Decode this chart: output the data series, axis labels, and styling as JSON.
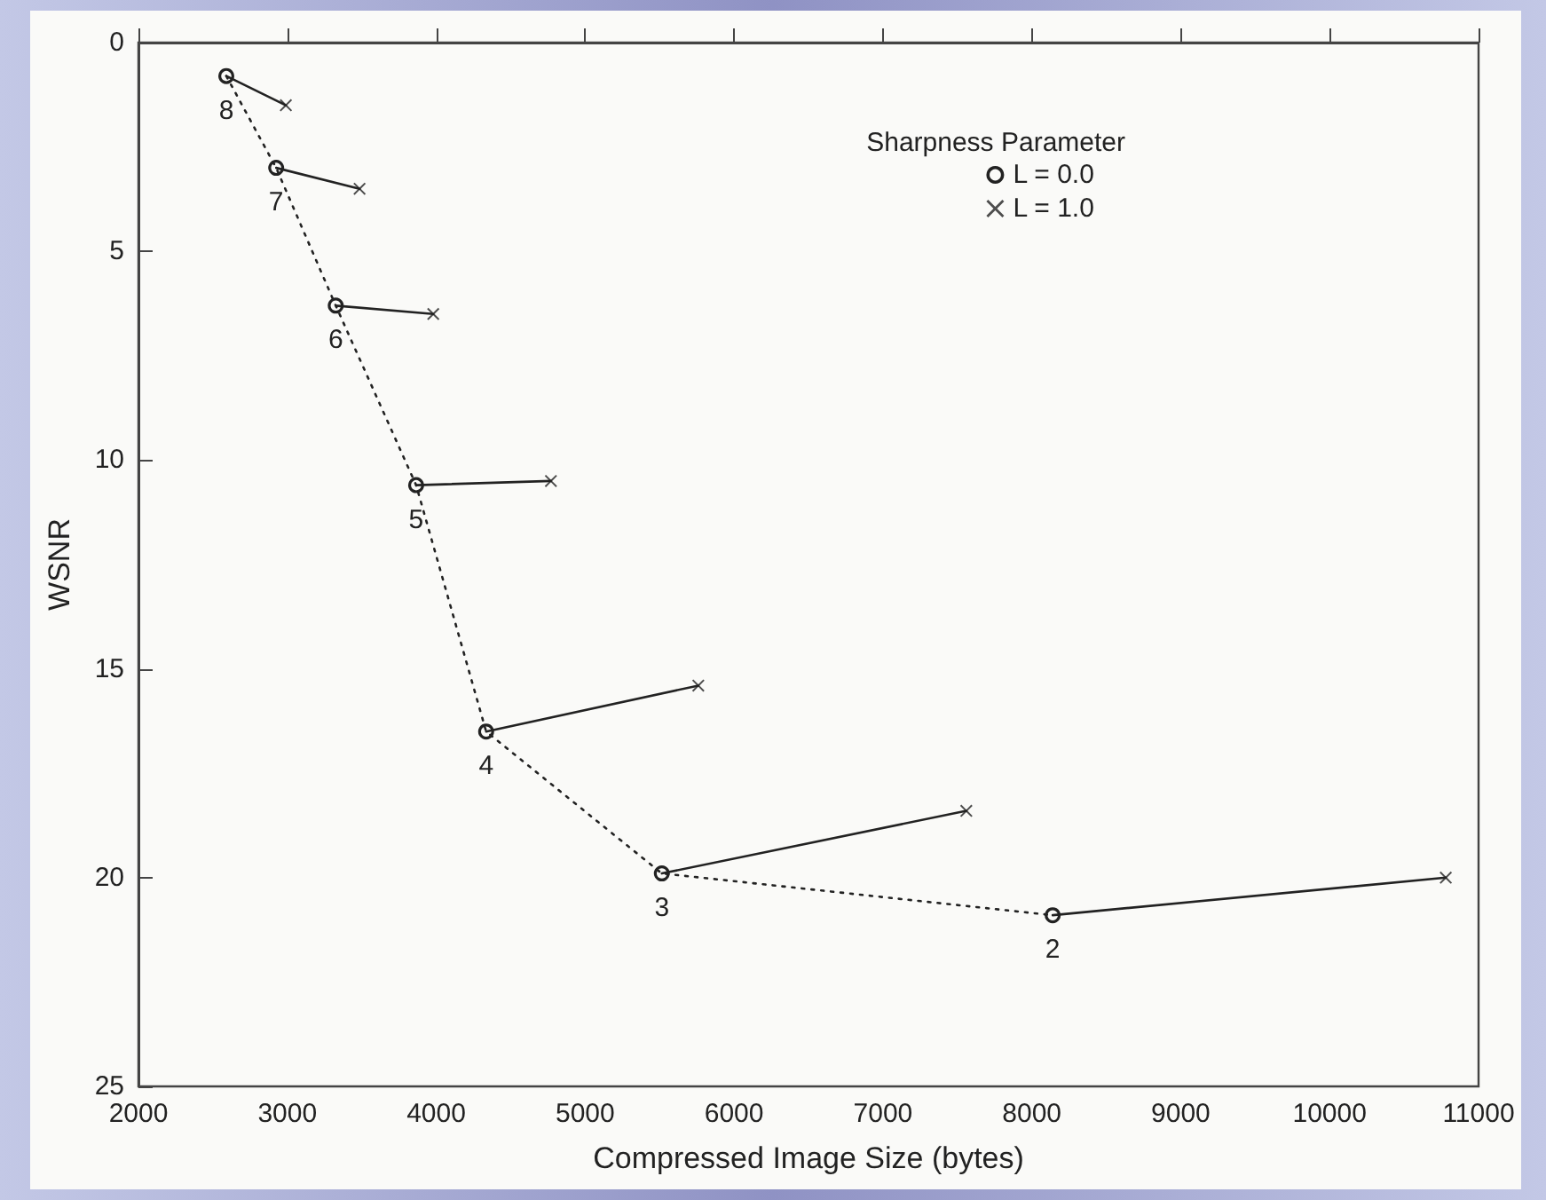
{
  "chart_data": {
    "type": "line",
    "xlabel": "Compressed Image Size (bytes)",
    "ylabel": "WSNR",
    "legend_title": "Sharpness Parameter",
    "xlim": [
      2000,
      11000
    ],
    "xticks": [
      2000,
      3000,
      4000,
      5000,
      6000,
      7000,
      8000,
      9000,
      10000,
      11000
    ],
    "ylim": [
      25,
      0
    ],
    "yticks": [
      0,
      5,
      10,
      15,
      20,
      25
    ],
    "grid": false,
    "legend": "top right",
    "annotations": [
      {
        "text": "8",
        "x": 2590,
        "y": 0.8
      },
      {
        "text": "7",
        "x": 2925,
        "y": 3.0
      },
      {
        "text": "6",
        "x": 3325,
        "y": 6.3
      },
      {
        "text": "5",
        "x": 3865,
        "y": 10.6
      },
      {
        "text": "4",
        "x": 4335,
        "y": 16.5
      },
      {
        "text": "3",
        "x": 5515,
        "y": 19.9
      },
      {
        "text": "2",
        "x": 8140,
        "y": 20.9
      }
    ],
    "series": [
      {
        "name": "L = 0.0",
        "color": "#222222",
        "marker": "circle",
        "line_style": "dotted",
        "x": [
          2590,
          2925,
          3325,
          3865,
          4335,
          5515,
          8140
        ],
        "values": [
          0.8,
          3.0,
          6.3,
          10.6,
          16.5,
          19.9,
          20.9
        ]
      },
      {
        "name": "L = 1.0",
        "type": "scatter",
        "color": "#222222",
        "marker": "cross",
        "x": [
          2990,
          3485,
          3980,
          4770,
          5760,
          7560,
          10780
        ],
        "values": [
          1.5,
          3.5,
          6.5,
          10.5,
          15.4,
          18.4,
          20.0
        ]
      },
      {
        "color": "#222222",
        "marker": "none",
        "line_style": "solid",
        "x": [
          2590,
          2990
        ],
        "values": [
          0.8,
          1.5
        ]
      },
      {
        "color": "#222222",
        "marker": "none",
        "line_style": "solid",
        "x": [
          2925,
          3485
        ],
        "values": [
          3.0,
          3.5
        ]
      },
      {
        "color": "#222222",
        "marker": "none",
        "line_style": "solid",
        "x": [
          3325,
          3980
        ],
        "values": [
          6.3,
          6.5
        ]
      },
      {
        "color": "#222222",
        "marker": "none",
        "line_style": "solid",
        "x": [
          3865,
          4770
        ],
        "values": [
          10.6,
          10.5
        ]
      },
      {
        "color": "#222222",
        "marker": "none",
        "line_style": "solid",
        "x": [
          4335,
          5760
        ],
        "values": [
          16.5,
          15.4
        ]
      },
      {
        "color": "#222222",
        "marker": "none",
        "line_style": "solid",
        "x": [
          5515,
          7560
        ],
        "values": [
          19.9,
          18.4
        ]
      },
      {
        "color": "#222222",
        "marker": "none",
        "line_style": "solid",
        "x": [
          8140,
          10780
        ],
        "values": [
          20.9,
          20.0
        ]
      }
    ]
  }
}
